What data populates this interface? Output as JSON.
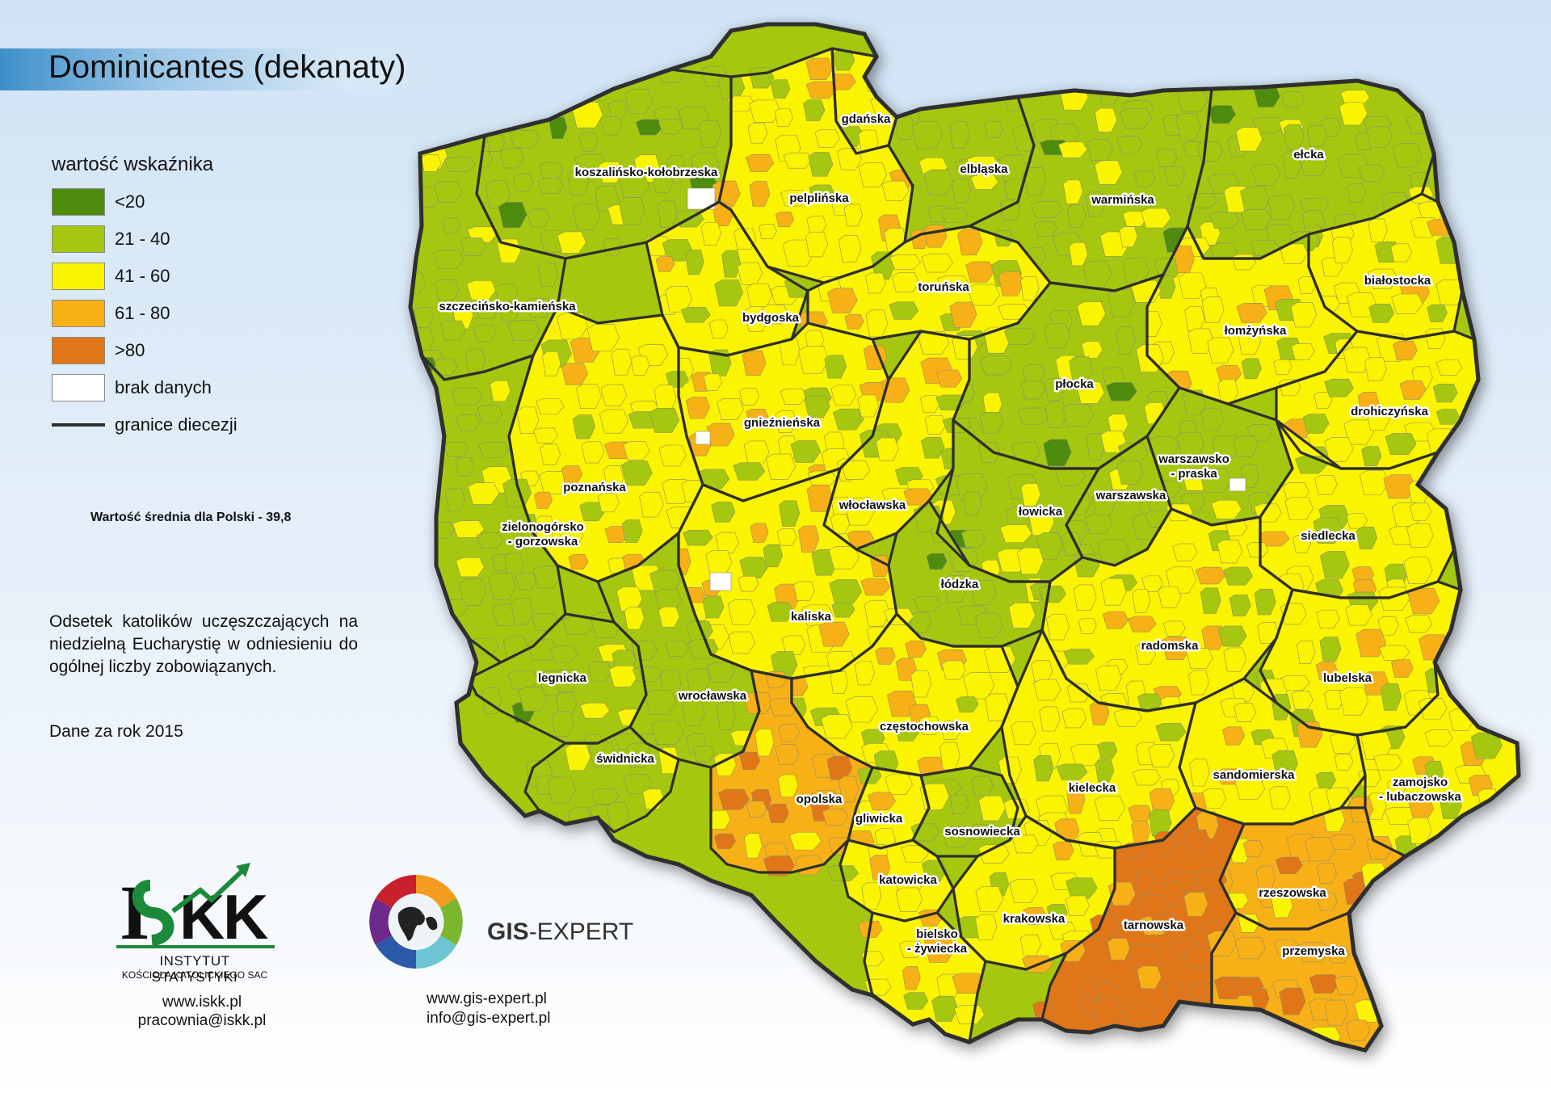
{
  "title": "Dominicantes (dekanaty)",
  "legend": {
    "title": "wartość wskaźnika",
    "classes": [
      {
        "label": "<20",
        "color": "#4e8c0d"
      },
      {
        "label": "21 - 40",
        "color": "#a5c70f"
      },
      {
        "label": "41 - 60",
        "color": "#fbf400"
      },
      {
        "label": "61 - 80",
        "color": "#f8b017"
      },
      {
        "label": ">80",
        "color": "#e07618"
      },
      {
        "label": "brak danych",
        "color": "#ffffff"
      }
    ],
    "boundary_label": "granice diecezji",
    "boundary_color": "#2f2f2f"
  },
  "mean_text": "Wartość średnia dla Polski - 39,8",
  "description": "Odsetek katolików uczęszczających na niedzielną Eucharystię w odniesieniu do ogólnej liczby zobowiązanych.",
  "year_text": "Dane za rok 2015",
  "dioceses": [
    {
      "name": "gdańska",
      "class": "41 - 60"
    },
    {
      "name": "koszalińsko-kołobrzeska",
      "class": "21 - 40"
    },
    {
      "name": "pelplińska",
      "class": "41 - 60"
    },
    {
      "name": "elbląska",
      "class": "21 - 40"
    },
    {
      "name": "warmińska",
      "class": "21 - 40"
    },
    {
      "name": "ełcka",
      "class": "21 - 40"
    },
    {
      "name": "szczecińsko-kamieńska",
      "class": "21 - 40"
    },
    {
      "name": "bydgoska",
      "class": "41 - 60"
    },
    {
      "name": "toruńska",
      "class": "41 - 60"
    },
    {
      "name": "białostocka",
      "class": "41 - 60"
    },
    {
      "name": "łomżyńska",
      "class": "41 - 60"
    },
    {
      "name": "płocka",
      "class": "21 - 40"
    },
    {
      "name": "gnieźnieńska",
      "class": "41 - 60"
    },
    {
      "name": "drohiczyńska",
      "class": "41 - 60"
    },
    {
      "name": "warszawsko - praska",
      "class": "21 - 40"
    },
    {
      "name": "poznańska",
      "class": "41 - 60"
    },
    {
      "name": "warszawska",
      "class": "21 - 40"
    },
    {
      "name": "włocławska",
      "class": "41 - 60"
    },
    {
      "name": "łowicka",
      "class": "21 - 40"
    },
    {
      "name": "zielonogórsko - gorzowska",
      "class": "21 - 40"
    },
    {
      "name": "siedlecka",
      "class": "41 - 60"
    },
    {
      "name": "łódzka",
      "class": "21 - 40"
    },
    {
      "name": "kaliska",
      "class": "41 - 60"
    },
    {
      "name": "radomska",
      "class": "41 - 60"
    },
    {
      "name": "legnicka",
      "class": "21 - 40"
    },
    {
      "name": "lubelska",
      "class": "41 - 60"
    },
    {
      "name": "wrocławska",
      "class": "21 - 40"
    },
    {
      "name": "częstochowska",
      "class": "41 - 60"
    },
    {
      "name": "świdnicka",
      "class": "21 - 40"
    },
    {
      "name": "sandomierska",
      "class": "41 - 60"
    },
    {
      "name": "kielecka",
      "class": "41 - 60"
    },
    {
      "name": "zamojsko - lubaczowska",
      "class": "41 - 60"
    },
    {
      "name": "opolska",
      "class": "61 - 80"
    },
    {
      "name": "gliwicka",
      "class": "41 - 60"
    },
    {
      "name": "sosnowiecka",
      "class": "21 - 40"
    },
    {
      "name": "katowicka",
      "class": "41 - 60"
    },
    {
      "name": "rzeszowska",
      "class": "61 - 80"
    },
    {
      "name": "krakowska",
      "class": "41 - 60"
    },
    {
      "name": "tarnowska",
      "class": ">80"
    },
    {
      "name": "bielsko - żywiecka",
      "class": "41 - 60"
    },
    {
      "name": "przemyska",
      "class": "61 - 80"
    }
  ],
  "logos": {
    "iskk": {
      "mark": "ISKK",
      "name": "INSTYTUT STATYSTYKI",
      "subname": "KOŚCIOŁA KATOLICKIEGO SAC",
      "www": "www.iskk.pl",
      "email": "pracownia@iskk.pl"
    },
    "gis": {
      "name_bold": "GIS",
      "name_rest": "-EXPERT",
      "www": "www.gis-expert.pl",
      "email": "info@gis-expert.pl"
    }
  }
}
